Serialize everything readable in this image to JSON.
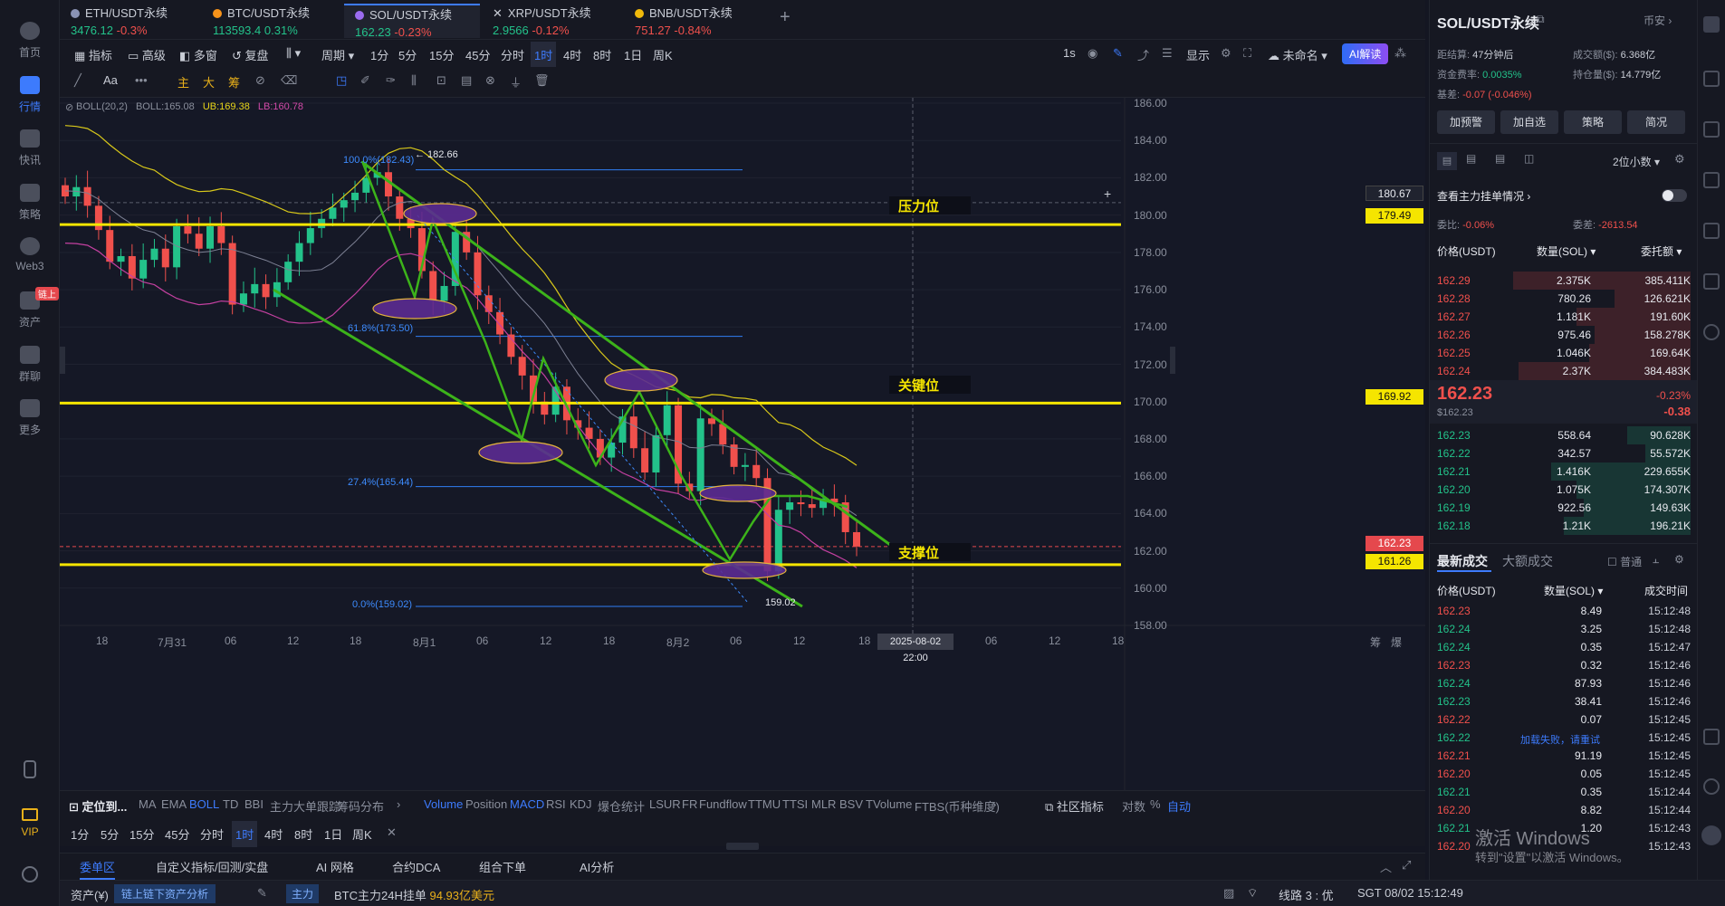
{
  "leftnav": {
    "items": [
      {
        "label": "首页",
        "icon": "home-icon"
      },
      {
        "label": "行情",
        "icon": "chart-icon",
        "active": true
      },
      {
        "label": "快讯",
        "icon": "news-icon"
      },
      {
        "label": "策略",
        "icon": "robot-icon"
      },
      {
        "label": "Web3",
        "icon": "web3-icon"
      },
      {
        "label": "资产",
        "icon": "wallet-icon",
        "badge": "链上"
      },
      {
        "label": "群聊",
        "icon": "chat-icon"
      },
      {
        "label": "更多",
        "icon": "grid-icon"
      },
      {
        "label": "VIP",
        "icon": "vip-icon"
      }
    ]
  },
  "tabs": [
    {
      "name": "ETH/USDT永续",
      "price": "3476.12",
      "change": "-0.3%",
      "dir": "down",
      "color": "#e8b01a"
    },
    {
      "name": "BTC/USDT永续",
      "price": "113593.4",
      "change": "0.31%",
      "dir": "up",
      "color": "#e8b01a"
    },
    {
      "name": "SOL/USDT永续",
      "price": "162.23",
      "change": "-0.23%",
      "dir": "down",
      "color": "#e8b01a",
      "active": true
    },
    {
      "name": "XRP/USDT永续",
      "price": "2.9566",
      "change": "-0.12%",
      "dir": "down",
      "color": "#cfd3da"
    },
    {
      "name": "BNB/USDT永续",
      "price": "751.27",
      "change": "-0.84%",
      "dir": "down",
      "color": "#e8b01a"
    }
  ],
  "toolbar1": {
    "left": [
      "指标",
      "高级",
      "多窗",
      "复盘",
      "周期",
      "1分",
      "5分",
      "15分",
      "45分",
      "分时",
      "1时",
      "4时",
      "8时",
      "1日",
      "周K"
    ],
    "active_tf": "1时",
    "right": [
      "1s",
      "显示",
      "未命名",
      "AI解读"
    ]
  },
  "toolbar2": {
    "labels": [
      "Aa",
      "主",
      "大",
      "筹"
    ]
  },
  "chart": {
    "boll": {
      "label": "BOLL(20,2)",
      "mid": "BOLL:165.08",
      "ub": "UB:169.38",
      "lb": "LB:160.78"
    },
    "y_ticks": [
      "186.00",
      "184.00",
      "182.00",
      "180.00",
      "178.00",
      "176.00",
      "174.00",
      "172.00",
      "170.00",
      "168.00",
      "166.00",
      "164.00",
      "162.00",
      "160.00",
      "158.00"
    ],
    "x_ticks": [
      "18",
      "7月31",
      "06",
      "12",
      "18",
      "8月1",
      "06",
      "12",
      "18",
      "8月2",
      "06",
      "12",
      "18",
      "06",
      "12",
      "18"
    ],
    "crosshair_time": "2025-08-02 22:00",
    "price_tags": [
      {
        "value": "180.67",
        "kind": "cross"
      },
      {
        "value": "179.49",
        "kind": "yellow"
      },
      {
        "value": "169.92",
        "kind": "yellow"
      },
      {
        "value": "162.23",
        "kind": "red"
      },
      {
        "value": "161.26",
        "kind": "yellow"
      }
    ],
    "fib": [
      {
        "label": "100.0%(182.43)"
      },
      {
        "label": "61.8%(173.50)"
      },
      {
        "label": "27.4%(165.44)"
      },
      {
        "label": "0.0%(159.02)"
      }
    ],
    "high_label": "← 182.66",
    "low_label": "159.02",
    "levels": [
      {
        "text": "压力位"
      },
      {
        "text": "关键位"
      },
      {
        "text": "支撑位"
      }
    ],
    "axis_extra": [
      "筹",
      "爆"
    ]
  },
  "chart_data": {
    "type": "candlestick",
    "symbol": "SOL/USDT永续",
    "timeframe": "1时",
    "ylim": [
      158,
      186
    ],
    "last_price": 162.23,
    "horizontal_levels": {
      "压力位": 179.49,
      "关键位": 169.92,
      "支撑位": 161.26
    },
    "fib_levels": [
      182.43,
      173.5,
      165.44,
      159.02
    ],
    "high": 182.66,
    "low": 159.02,
    "boll": {
      "mid": 165.08,
      "ub": 169.38,
      "lb": 160.78
    },
    "close_series": [
      181.0,
      181.5,
      180.5,
      179.2,
      177.5,
      177.8,
      176.6,
      177.6,
      178.2,
      177.2,
      179.4,
      179.0,
      178.2,
      179.4,
      178.5,
      175.2,
      175.8,
      176.3,
      175.6,
      176.4,
      177.5,
      178.5,
      179.3,
      179.8,
      180.4,
      180.8,
      181.2,
      182.0,
      182.3,
      181.0,
      179.8,
      179.3,
      177.0,
      175.4,
      176.2,
      179.1,
      178.0,
      175.7,
      174.8,
      173.6,
      172.4,
      171.4,
      170.0,
      169.3,
      170.8,
      169.0,
      168.6,
      168.0,
      167.0,
      167.8,
      169.2,
      167.5,
      166.2,
      168.2,
      169.8,
      165.6,
      165.2,
      169.1,
      168.8,
      167.7,
      166.5,
      166.6,
      165.9,
      160.9,
      164.2,
      164.6,
      164.5,
      164.3,
      164.8,
      164.6,
      163.0,
      162.23
    ]
  },
  "indicator_bar": {
    "title": "定位到...",
    "main": [
      "MA",
      "EMA",
      "BOLL",
      "TD",
      "BBI",
      "主力大单跟踪",
      "筹码分布"
    ],
    "sub": [
      "Volume",
      "Position",
      "MACD",
      "RSI",
      "KDJ",
      "爆仓统计",
      "LSUR",
      "FR",
      "Fundflow",
      "TTMU",
      "TTSI",
      "MLR",
      "BSV",
      "TVolume",
      "FTBS(币种维度)"
    ],
    "right": [
      "社区指标",
      "对数",
      "%",
      "自动"
    ]
  },
  "tf_bar": [
    "1分",
    "5分",
    "15分",
    "45分",
    "分时",
    "1时",
    "4时",
    "8时",
    "1日",
    "周K"
  ],
  "panel_tabs": [
    "委单区",
    "自定义指标/回测/实盘",
    "AI 网格",
    "合约DCA",
    "组合下单",
    "AI分析"
  ],
  "statusbar": {
    "asset": "资产(¥)",
    "analysis": "链上链下资产分析",
    "tag": "主力",
    "news_prefix": "BTC主力24H挂单",
    "news_value": "94.93亿美元",
    "line": "线路 3 : 优",
    "clock": "SGT 08/02 15:12:49"
  },
  "rightpanel": {
    "title": "SOL/USDT永续",
    "exchange": "币安",
    "stats": [
      {
        "k": "距结算:",
        "v": "47分钟后"
      },
      {
        "k": "成交额($):",
        "v": "6.368亿"
      },
      {
        "k": "资金费率:",
        "v": "0.0035%"
      },
      {
        "k": "持仓量($):",
        "v": "14.779亿"
      },
      {
        "k": "基差:",
        "v": "-0.07 (-0.046%)"
      }
    ],
    "buttons": [
      "加预警",
      "加自选",
      "策略",
      "简况"
    ],
    "decimals": "2位小数",
    "main_orders": "查看主力挂单情况",
    "ratio_label": "委比:",
    "ratio": "-0.06%",
    "diff_label": "委差:",
    "diff": "-2613.54",
    "ob_headers": [
      "价格(USDT)",
      "数量(SOL)",
      "委托额"
    ],
    "asks": [
      {
        "p": "162.29",
        "q": "2.375K",
        "t": "385.411K",
        "w": 0.7
      },
      {
        "p": "162.28",
        "q": "780.26",
        "t": "126.621K",
        "w": 0.3
      },
      {
        "p": "162.27",
        "q": "1.181K",
        "t": "191.60K",
        "w": 0.45
      },
      {
        "p": "162.26",
        "q": "975.46",
        "t": "158.278K",
        "w": 0.38
      },
      {
        "p": "162.25",
        "q": "1.046K",
        "t": "169.64K",
        "w": 0.4
      },
      {
        "p": "162.24",
        "q": "2.37K",
        "t": "384.483K",
        "w": 0.68
      }
    ],
    "last": {
      "price": "162.23",
      "usd": "$162.23",
      "pct": "-0.23%",
      "chg": "-0.38"
    },
    "bids": [
      {
        "p": "162.23",
        "q": "558.64",
        "t": "90.628K",
        "w": 0.25
      },
      {
        "p": "162.22",
        "q": "342.57",
        "t": "55.572K",
        "w": 0.18
      },
      {
        "p": "162.21",
        "q": "1.416K",
        "t": "229.655K",
        "w": 0.55
      },
      {
        "p": "162.20",
        "q": "1.075K",
        "t": "174.307K",
        "w": 0.45
      },
      {
        "p": "162.19",
        "q": "922.56",
        "t": "149.63K",
        "w": 0.42
      },
      {
        "p": "162.18",
        "q": "1.21K",
        "t": "196.21K",
        "w": 0.5
      }
    ],
    "trades_tabs": [
      "最新成交",
      "大额成交"
    ],
    "trades_mode": "普通",
    "trades_headers": [
      "价格(USDT)",
      "数量(SOL)",
      "成交时间"
    ],
    "trades": [
      {
        "p": "162.23",
        "q": "8.49",
        "t": "15:12:48",
        "d": "down"
      },
      {
        "p": "162.24",
        "q": "3.25",
        "t": "15:12:48",
        "d": "up"
      },
      {
        "p": "162.24",
        "q": "0.35",
        "t": "15:12:47",
        "d": "up"
      },
      {
        "p": "162.23",
        "q": "0.32",
        "t": "15:12:46",
        "d": "down"
      },
      {
        "p": "162.24",
        "q": "87.93",
        "t": "15:12:46",
        "d": "up"
      },
      {
        "p": "162.23",
        "q": "38.41",
        "t": "15:12:46",
        "d": "up"
      },
      {
        "p": "162.22",
        "q": "0.07",
        "t": "15:12:45",
        "d": "down"
      },
      {
        "p": "162.22",
        "q": "",
        "t": "15:12:45",
        "d": "up"
      },
      {
        "p": "162.21",
        "q": "91.19",
        "t": "15:12:45",
        "d": "down"
      },
      {
        "p": "162.20",
        "q": "0.05",
        "t": "15:12:45",
        "d": "down"
      },
      {
        "p": "162.21",
        "q": "0.35",
        "t": "15:12:44",
        "d": "up"
      },
      {
        "p": "162.20",
        "q": "8.82",
        "t": "15:12:44",
        "d": "down"
      },
      {
        "p": "162.21",
        "q": "1.20",
        "t": "15:12:43",
        "d": "up"
      },
      {
        "p": "162.20",
        "q": "",
        "t": "15:12:43",
        "d": "down"
      }
    ],
    "load_error": "加载失败，请重试",
    "watermark1": "激活 Windows",
    "watermark2": "转到\"设置\"以激活 Windows。"
  }
}
